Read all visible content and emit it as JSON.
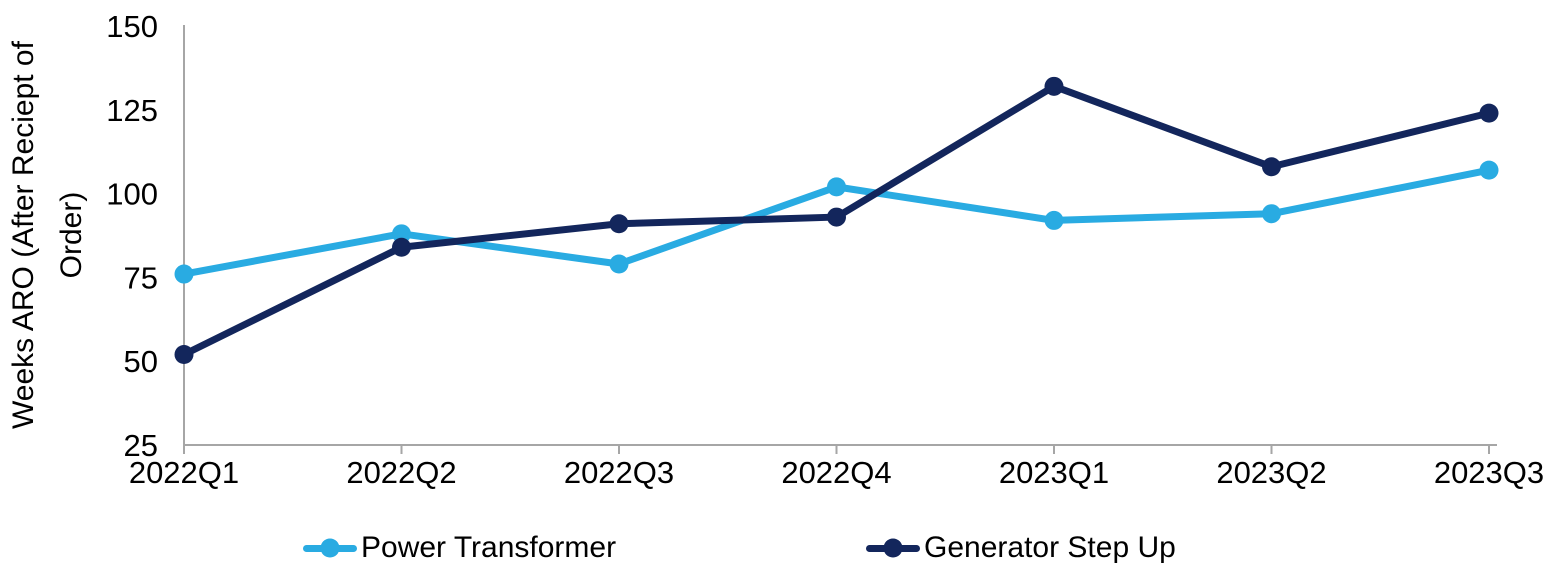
{
  "chart_data": {
    "type": "line",
    "categories": [
      "2022Q1",
      "2022Q2",
      "2022Q3",
      "2022Q4",
      "2023Q1",
      "2023Q2",
      "2023Q3"
    ],
    "series": [
      {
        "name": "Power Transformer",
        "color": "#29ABE2",
        "values": [
          76,
          88,
          79,
          102,
          92,
          94,
          107
        ]
      },
      {
        "name": "Generator Step Up",
        "color": "#13265C",
        "values": [
          52,
          84,
          91,
          93,
          132,
          108,
          124
        ]
      }
    ],
    "title": "",
    "xlabel": "",
    "ylabel": "Weeks ARO (After Reciept of\nOrder)",
    "ylim": [
      25,
      150
    ],
    "ytick_step": 25,
    "yticks": [
      25,
      50,
      75,
      100,
      125,
      150
    ],
    "grid": false,
    "legend_position": "bottom",
    "axis_color": "#A6A6A6",
    "tick_label_color": "#000000"
  }
}
